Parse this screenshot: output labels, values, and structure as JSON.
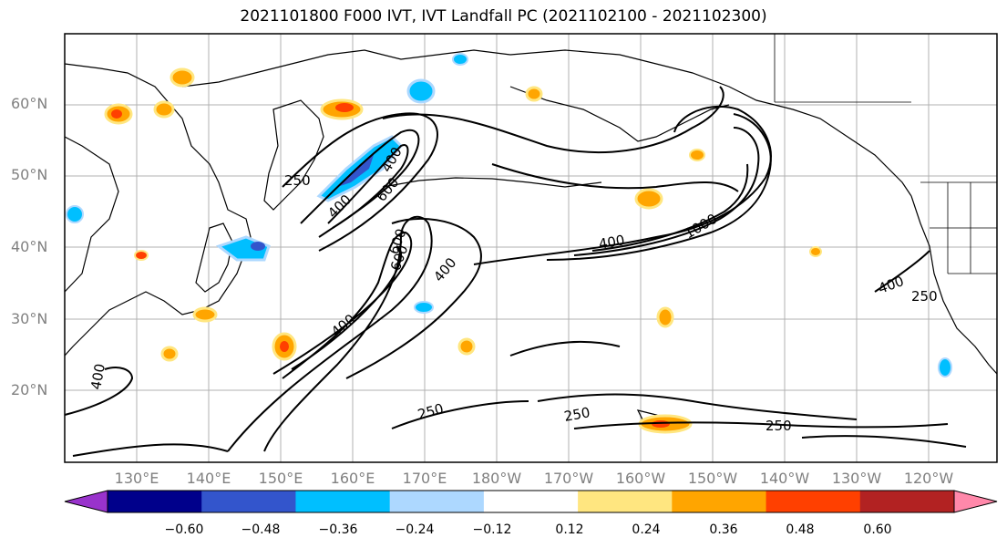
{
  "title": "2021101800 F000 IVT, IVT Landfall PC (2021102100 - 2021102300)",
  "latitude_labels": [
    "60°N",
    "50°N",
    "40°N",
    "30°N",
    "20°N"
  ],
  "longitude_labels": [
    "130°E",
    "140°E",
    "150°E",
    "160°E",
    "170°E",
    "180°W",
    "170°W",
    "160°W",
    "150°W",
    "140°W",
    "130°W",
    "120°W"
  ],
  "colorbar": {
    "tick_labels": [
      "−0.60",
      "−0.48",
      "−0.36",
      "−0.24",
      "−0.12",
      "0.12",
      "0.24",
      "0.36",
      "0.48",
      "0.60"
    ],
    "colors": [
      "#9933cc",
      "#00008b",
      "#3355cc",
      "#00bfff",
      "#add8ff",
      "#ffffff",
      "#ffe680",
      "#ffa500",
      "#ff4000",
      "#b22222",
      "#ff88aa"
    ]
  },
  "contour_labels": [
    "250",
    "600",
    "400",
    "400",
    "600",
    "400",
    "400",
    "600",
    "400",
    "400",
    "250",
    "250",
    "400",
    "250",
    "1000",
    "250"
  ],
  "colors": {
    "frame": "#000000",
    "grid": "#b0b0b0",
    "coast": "#000000",
    "tick_label": "#808080"
  }
}
